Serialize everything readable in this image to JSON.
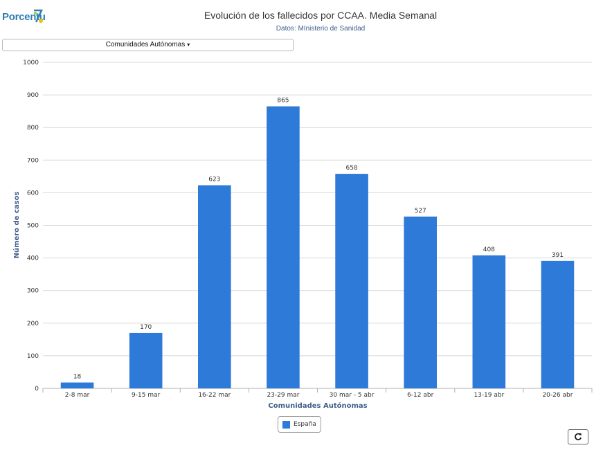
{
  "logo_text": "Porcentu",
  "dropdown": {
    "label": "Comunidades Autónomas",
    "caret": "▾"
  },
  "refresh_icon": "refresh-icon",
  "colors": {
    "bar": "#2e7ad8",
    "grid": "#d8d8d8",
    "axis_title": "#3e5f8a"
  },
  "chart_data": {
    "type": "bar",
    "title": "Evolución de los fallecidos por CCAA. Media Semanal",
    "subtitle": "Datos: MInisterio de Sanidad",
    "xlabel": "Comunidades Autónomas",
    "ylabel": "Número de casos",
    "categories": [
      "2-8 mar",
      "9-15 mar",
      "16-22 mar",
      "23-29 mar",
      "30 mar - 5 abr",
      "6-12 abr",
      "13-19 abr",
      "20-26 abr"
    ],
    "series": [
      {
        "name": "España",
        "values": [
          18,
          170,
          623,
          865,
          658,
          527,
          408,
          391
        ]
      }
    ],
    "ylim": [
      0,
      1000
    ],
    "yticks": [
      0,
      100,
      200,
      300,
      400,
      500,
      600,
      700,
      800,
      900,
      1000
    ],
    "grid": true,
    "legend_position": "bottom-center",
    "data_labels": true
  }
}
